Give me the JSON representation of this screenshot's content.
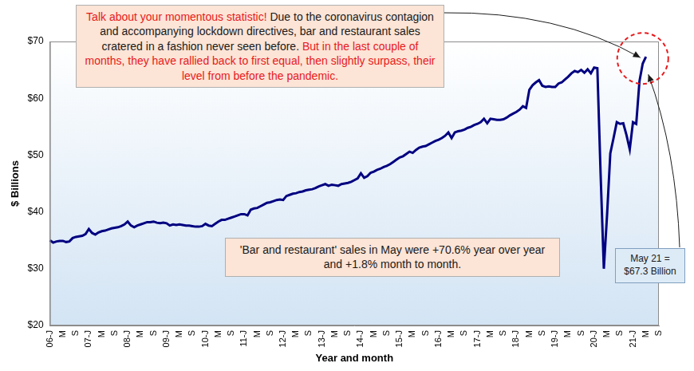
{
  "chart_data": {
    "type": "line",
    "color": "#000080",
    "x_label": "Year and month",
    "y_label": "$ Billions",
    "ylim": [
      20,
      70
    ],
    "yticks": [
      {
        "value": 20,
        "label": "$20"
      },
      {
        "value": 30,
        "label": "$30"
      },
      {
        "value": 40,
        "label": "$40"
      },
      {
        "value": 50,
        "label": "$50"
      },
      {
        "value": 60,
        "label": "$60"
      },
      {
        "value": 70,
        "label": "$70"
      }
    ],
    "grid": false,
    "categories": [
      "06-J",
      null,
      null,
      null,
      "M",
      null,
      null,
      null,
      "S",
      null,
      null,
      null,
      "07-J",
      null,
      null,
      null,
      "M",
      null,
      null,
      null,
      "S",
      null,
      null,
      null,
      "08-J",
      null,
      null,
      null,
      "M",
      null,
      null,
      null,
      "S",
      null,
      null,
      null,
      "09-J",
      null,
      null,
      null,
      "M",
      null,
      null,
      null,
      "S",
      null,
      null,
      null,
      "10-J",
      null,
      null,
      null,
      "M",
      null,
      null,
      null,
      "S",
      null,
      null,
      null,
      "11-J",
      null,
      null,
      null,
      "M",
      null,
      null,
      null,
      "S",
      null,
      null,
      null,
      "12-J",
      null,
      null,
      null,
      "M",
      null,
      null,
      null,
      "S",
      null,
      null,
      null,
      "13-J",
      null,
      null,
      null,
      "M",
      null,
      null,
      null,
      "S",
      null,
      null,
      null,
      "14-J",
      null,
      null,
      null,
      "M",
      null,
      null,
      null,
      "S",
      null,
      null,
      null,
      "15-J",
      null,
      null,
      null,
      "M",
      null,
      null,
      null,
      "S",
      null,
      null,
      null,
      "16-J",
      null,
      null,
      null,
      "M",
      null,
      null,
      null,
      "S",
      null,
      null,
      null,
      "17-J",
      null,
      null,
      null,
      "M",
      null,
      null,
      null,
      "S",
      null,
      null,
      null,
      "18-J",
      null,
      null,
      null,
      "M",
      null,
      null,
      null,
      "S",
      null,
      null,
      null,
      "19-J",
      null,
      null,
      null,
      "M",
      null,
      null,
      null,
      "S",
      null,
      null,
      null,
      "20-J",
      null,
      null,
      null,
      "M",
      null,
      null,
      null,
      "S",
      null,
      null,
      null,
      "21-J",
      null,
      null,
      null,
      "M",
      null,
      null,
      null,
      "S"
    ],
    "values": [
      35.0,
      34.6,
      34.8,
      34.9,
      34.9,
      34.7,
      34.8,
      35.4,
      35.6,
      35.7,
      35.8,
      36.1,
      37.0,
      36.3,
      36.0,
      36.4,
      36.6,
      36.7,
      36.9,
      37.1,
      37.2,
      37.3,
      37.5,
      37.8,
      38.3,
      37.6,
      37.3,
      37.6,
      37.8,
      38.0,
      38.2,
      38.2,
      38.3,
      38.1,
      38.0,
      38.1,
      38.0,
      37.6,
      37.8,
      37.7,
      37.8,
      37.7,
      37.6,
      37.6,
      37.5,
      37.4,
      37.4,
      37.5,
      37.9,
      37.6,
      37.5,
      37.9,
      38.3,
      38.6,
      38.6,
      38.8,
      39.0,
      39.2,
      39.4,
      39.6,
      39.6,
      39.4,
      40.4,
      40.6,
      40.7,
      41.0,
      41.3,
      41.6,
      41.7,
      41.9,
      42.1,
      42.2,
      42.1,
      42.8,
      43.0,
      43.2,
      43.3,
      43.5,
      43.6,
      43.8,
      43.9,
      44.0,
      44.2,
      44.5,
      44.7,
      44.9,
      44.6,
      44.8,
      44.7,
      44.6,
      44.9,
      45.0,
      45.1,
      45.3,
      45.6,
      45.9,
      46.8,
      46.0,
      46.3,
      46.9,
      47.1,
      47.4,
      47.6,
      47.9,
      48.1,
      48.4,
      48.8,
      49.2,
      49.6,
      49.8,
      50.2,
      50.6,
      50.4,
      50.9,
      51.3,
      51.5,
      51.6,
      51.9,
      52.2,
      52.5,
      52.7,
      53.0,
      53.4,
      54.0,
      53.0,
      54.0,
      54.2,
      54.3,
      54.5,
      54.8,
      55.0,
      55.3,
      55.5,
      55.8,
      56.4,
      55.6,
      56.4,
      56.3,
      56.2,
      56.2,
      56.3,
      56.6,
      57.0,
      57.3,
      57.6,
      58.0,
      58.6,
      58.3,
      61.5,
      62.3,
      62.8,
      63.2,
      62.2,
      62.0,
      62.1,
      62.0,
      62.0,
      62.6,
      62.8,
      63.3,
      63.8,
      64.4,
      64.8,
      64.6,
      65.0,
      64.5,
      65.1,
      64.4,
      65.4,
      65.3,
      46.7,
      30.0,
      39.5,
      50.3,
      53.0,
      55.8,
      55.5,
      55.6,
      53.5,
      51.0,
      55.8,
      55.5,
      63.0,
      66.1,
      67.3,
      null,
      null,
      null,
      null
    ],
    "annotations": [
      {
        "segments": [
          {
            "text": "Talk about your momentous statistic!",
            "color": "#e8191c"
          },
          {
            "text": "Due to the coronavirus contagion and accompanying lockdown directives, bar and restaurant sales cratered in a fashion never seen before.",
            "color": "#1a1a1a"
          },
          {
            "text": "But in the last couple of months, they have rallied back to first equal, then slightly surpass, their level from before the pandemic.",
            "color": "#e8191c"
          }
        ]
      },
      {
        "text": "'Bar and restaurant' sales in May were +70.6% year over year and +1.8% month to month."
      },
      {
        "lines": [
          "May 21 =",
          "$67.3 Billion"
        ]
      }
    ]
  }
}
